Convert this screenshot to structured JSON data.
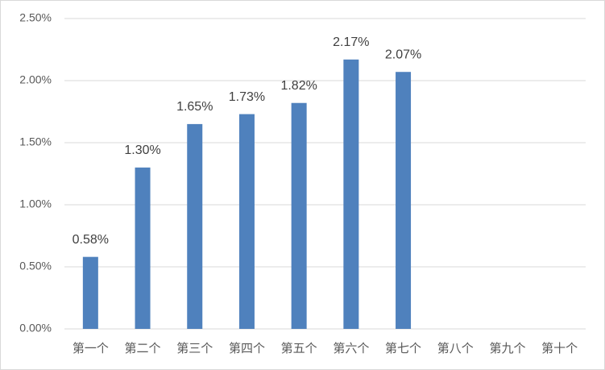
{
  "chart_data": {
    "type": "bar",
    "categories": [
      "第一个",
      "第二个",
      "第三个",
      "第四个",
      "第五个",
      "第六个",
      "第七个",
      "第八个",
      "第九个",
      "第十个"
    ],
    "values": [
      0.58,
      1.3,
      1.65,
      1.73,
      1.82,
      2.17,
      2.07,
      null,
      null,
      null
    ],
    "value_labels": [
      "0.58%",
      "1.30%",
      "1.65%",
      "1.73%",
      "1.82%",
      "2.17%",
      "2.07%",
      null,
      null,
      null
    ],
    "color": "#4f81bd",
    "ylim": [
      0,
      2.5
    ],
    "yticks": [
      {
        "value": 0,
        "label": "0.00%"
      },
      {
        "value": 0.5,
        "label": "0.50%"
      },
      {
        "value": 1,
        "label": "1.00%"
      },
      {
        "value": 1.5,
        "label": "1.50%"
      },
      {
        "value": 2,
        "label": "2.00%"
      },
      {
        "value": 2.5,
        "label": "2.50%"
      }
    ],
    "grid": true
  }
}
